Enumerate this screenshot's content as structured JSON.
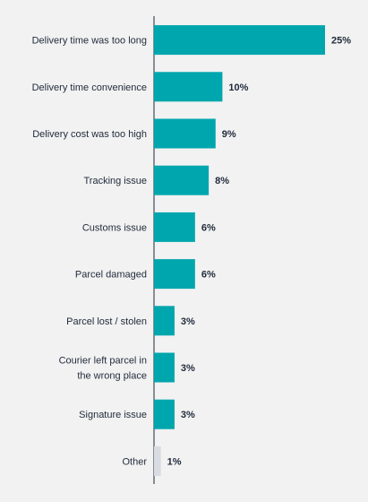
{
  "chart_data": {
    "type": "bar",
    "orientation": "horizontal",
    "categories": [
      "Delivery time was too long",
      "Delivery time convenience",
      "Delivery cost was too high",
      "Tracking issue",
      "Customs issue",
      "Parcel damaged",
      "Parcel lost / stolen",
      "Courier left parcel in the wrong place",
      "Signature issue",
      "Other"
    ],
    "category_lines": [
      [
        "Delivery time was too long"
      ],
      [
        "Delivery time convenience"
      ],
      [
        "Delivery cost was too high"
      ],
      [
        "Tracking issue"
      ],
      [
        "Customs issue"
      ],
      [
        "Parcel damaged"
      ],
      [
        "Parcel lost / stolen"
      ],
      [
        "Courier left parcel in",
        "the wrong place"
      ],
      [
        "Signature issue"
      ],
      [
        "Other"
      ]
    ],
    "values": [
      25,
      10,
      9,
      8,
      6,
      6,
      3,
      3,
      3,
      1
    ],
    "value_labels": [
      "25%",
      "10%",
      "9%",
      "8%",
      "6%",
      "6%",
      "3%",
      "3%",
      "3%",
      "1%"
    ],
    "bar_colors": [
      "#00a6ad",
      "#00a6ad",
      "#00a6ad",
      "#00a6ad",
      "#00a6ad",
      "#00a6ad",
      "#00a6ad",
      "#00a6ad",
      "#00a6ad",
      "#d8dbe2"
    ],
    "xlim": [
      0,
      25
    ],
    "grid": false,
    "title": "",
    "xlabel": "",
    "ylabel": ""
  },
  "colors": {
    "background": "#f2f2f2",
    "axis": "#1f2a3a",
    "text": "#1f2a3a"
  }
}
